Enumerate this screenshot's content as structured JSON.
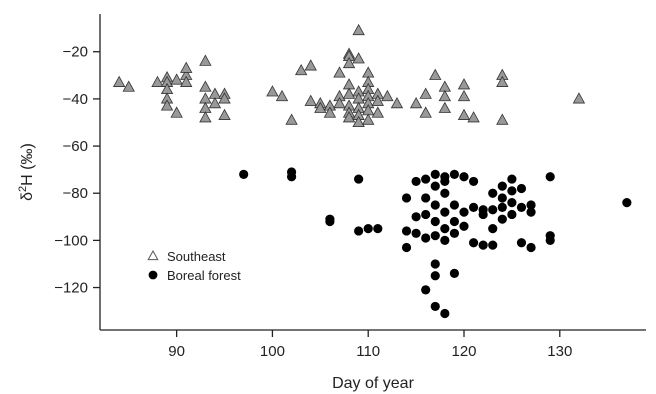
{
  "chart_data": {
    "type": "scatter",
    "xlabel": "Day of year",
    "ylabel_prefix": "δ",
    "ylabel_sup": "2",
    "ylabel_suffix": "H (‰)",
    "xlim": [
      82,
      139
    ],
    "ylim": [
      -138,
      -4
    ],
    "x_ticks": [
      90,
      100,
      110,
      120,
      130
    ],
    "y_ticks": [
      -20,
      -40,
      -60,
      -80,
      -100,
      -120
    ],
    "x_tick_labels": [
      "90",
      "100",
      "110",
      "120",
      "130"
    ],
    "y_tick_labels": [
      "−20",
      "−40",
      "−60",
      "−80",
      "−100",
      "−120"
    ],
    "grid": false,
    "legend_placement": "lower-left",
    "series": [
      {
        "name": "Southeast",
        "marker": "triangle",
        "color": "#999999",
        "points": [
          [
            84,
            -33
          ],
          [
            85,
            -35
          ],
          [
            88,
            -33
          ],
          [
            89,
            -31
          ],
          [
            89,
            -33
          ],
          [
            89,
            -36
          ],
          [
            89,
            -40
          ],
          [
            89,
            -43
          ],
          [
            90,
            -46
          ],
          [
            90,
            -32
          ],
          [
            91,
            -30
          ],
          [
            91,
            -33
          ],
          [
            91,
            -27
          ],
          [
            93,
            -24
          ],
          [
            93,
            -35
          ],
          [
            93,
            -40
          ],
          [
            93,
            -44
          ],
          [
            93,
            -48
          ],
          [
            94,
            -38
          ],
          [
            94,
            -42
          ],
          [
            95,
            -38
          ],
          [
            95,
            -40
          ],
          [
            95,
            -47
          ],
          [
            100,
            -37
          ],
          [
            101,
            -39
          ],
          [
            102,
            -49
          ],
          [
            103,
            -28
          ],
          [
            104,
            -26
          ],
          [
            104,
            -41
          ],
          [
            105,
            -42
          ],
          [
            105,
            -44
          ],
          [
            106,
            -43
          ],
          [
            106,
            -46
          ],
          [
            107,
            -29
          ],
          [
            107,
            -39
          ],
          [
            107,
            -42
          ],
          [
            108,
            -21
          ],
          [
            108,
            -22
          ],
          [
            108,
            -25
          ],
          [
            108,
            -34
          ],
          [
            108,
            -38
          ],
          [
            108,
            -43
          ],
          [
            108,
            -46
          ],
          [
            108,
            -48
          ],
          [
            109,
            -11
          ],
          [
            109,
            -23
          ],
          [
            109,
            -37
          ],
          [
            109,
            -40
          ],
          [
            109,
            -44
          ],
          [
            109,
            -47
          ],
          [
            109,
            -50
          ],
          [
            110,
            -29
          ],
          [
            110,
            -33
          ],
          [
            110,
            -36
          ],
          [
            110,
            -39
          ],
          [
            110,
            -42
          ],
          [
            110,
            -45
          ],
          [
            110,
            -49
          ],
          [
            111,
            -38
          ],
          [
            111,
            -41
          ],
          [
            111,
            -46
          ],
          [
            112,
            -39
          ],
          [
            113,
            -42
          ],
          [
            115,
            -42
          ],
          [
            116,
            -38
          ],
          [
            116,
            -46
          ],
          [
            117,
            -30
          ],
          [
            118,
            -35
          ],
          [
            118,
            -39
          ],
          [
            118,
            -44
          ],
          [
            120,
            -34
          ],
          [
            120,
            -39
          ],
          [
            120,
            -47
          ],
          [
            121,
            -48
          ],
          [
            124,
            -30
          ],
          [
            124,
            -33
          ],
          [
            124,
            -49
          ],
          [
            132,
            -40
          ]
        ]
      },
      {
        "name": "Boreal forest",
        "marker": "circle",
        "color": "#000000",
        "points": [
          [
            97,
            -72
          ],
          [
            102,
            -71
          ],
          [
            102,
            -73
          ],
          [
            106,
            -91
          ],
          [
            106,
            -92
          ],
          [
            109,
            -74
          ],
          [
            109,
            -96
          ],
          [
            110,
            -95
          ],
          [
            111,
            -95
          ],
          [
            114,
            -82
          ],
          [
            114,
            -96
          ],
          [
            114,
            -103
          ],
          [
            115,
            -75
          ],
          [
            115,
            -90
          ],
          [
            115,
            -97
          ],
          [
            116,
            -74
          ],
          [
            116,
            -82
          ],
          [
            116,
            -89
          ],
          [
            116,
            -99
          ],
          [
            116,
            -121
          ],
          [
            117,
            -72
          ],
          [
            117,
            -77
          ],
          [
            117,
            -85
          ],
          [
            117,
            -92
          ],
          [
            117,
            -98
          ],
          [
            117,
            -110
          ],
          [
            117,
            -115
          ],
          [
            117,
            -128
          ],
          [
            118,
            -73
          ],
          [
            118,
            -75
          ],
          [
            118,
            -80
          ],
          [
            118,
            -88
          ],
          [
            118,
            -95
          ],
          [
            118,
            -100
          ],
          [
            118,
            -131
          ],
          [
            119,
            -72
          ],
          [
            119,
            -85
          ],
          [
            119,
            -92
          ],
          [
            119,
            -97
          ],
          [
            119,
            -114
          ],
          [
            120,
            -73
          ],
          [
            120,
            -88
          ],
          [
            120,
            -94
          ],
          [
            121,
            -75
          ],
          [
            121,
            -86
          ],
          [
            121,
            -101
          ],
          [
            122,
            -87
          ],
          [
            122,
            -89
          ],
          [
            122,
            -102
          ],
          [
            123,
            -80
          ],
          [
            123,
            -87
          ],
          [
            123,
            -95
          ],
          [
            123,
            -102
          ],
          [
            124,
            -77
          ],
          [
            124,
            -82
          ],
          [
            124,
            -86
          ],
          [
            124,
            -91
          ],
          [
            125,
            -74
          ],
          [
            125,
            -79
          ],
          [
            125,
            -84
          ],
          [
            125,
            -89
          ],
          [
            126,
            -78
          ],
          [
            126,
            -86
          ],
          [
            126,
            -101
          ],
          [
            127,
            -85
          ],
          [
            127,
            -88
          ],
          [
            127,
            -103
          ],
          [
            129,
            -73
          ],
          [
            129,
            -98
          ],
          [
            129,
            -100
          ],
          [
            137,
            -84
          ]
        ]
      }
    ]
  }
}
